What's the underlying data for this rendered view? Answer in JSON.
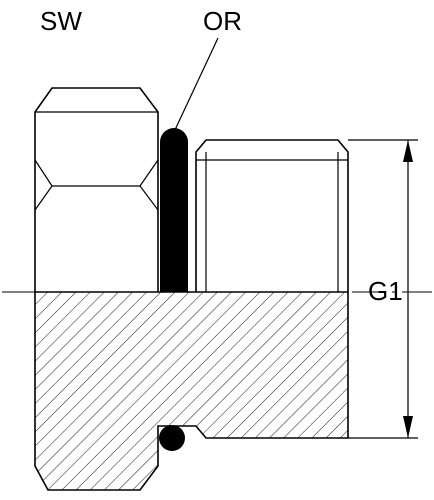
{
  "labels": {
    "hex": "SW",
    "oring": "OR",
    "thread": "G1"
  },
  "colors": {
    "line": "#000000",
    "background": "#ffffff",
    "seal": "#000000"
  }
}
